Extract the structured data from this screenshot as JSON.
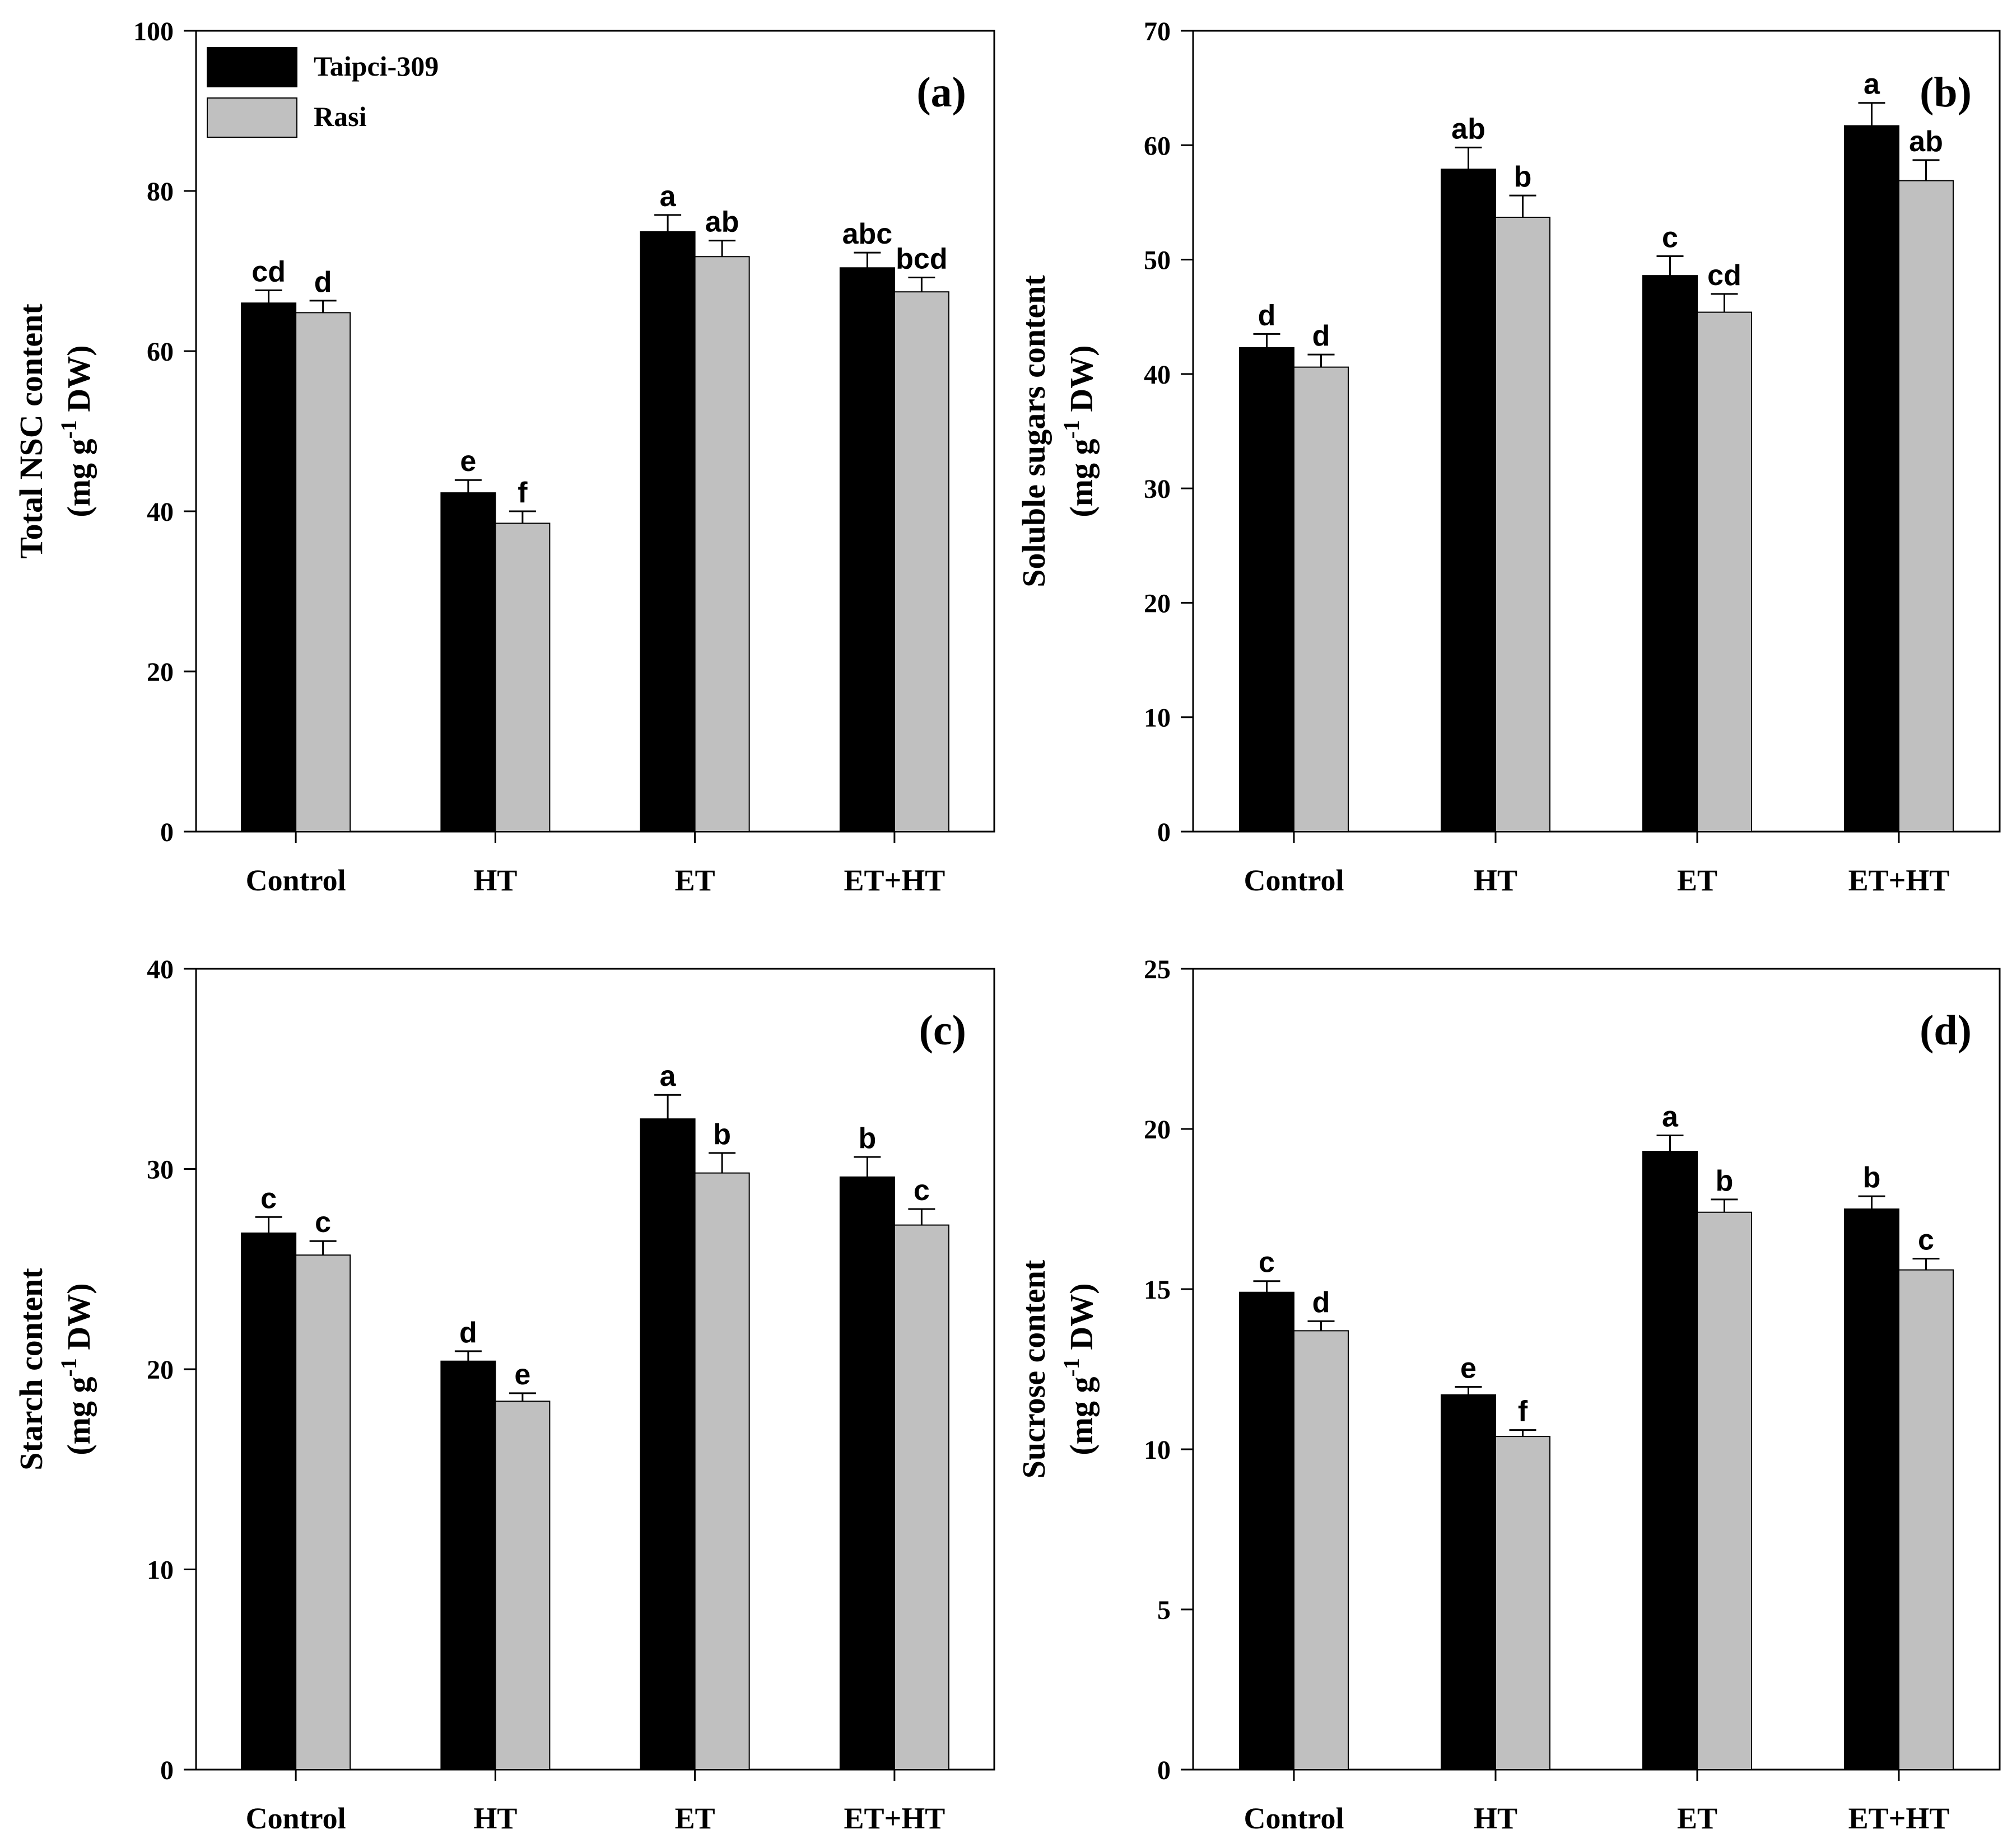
{
  "legend": {
    "series_1": "Taipci-309",
    "series_2": "Rasi"
  },
  "colors": {
    "series_1": "#000000",
    "series_2": "#c0c0c0",
    "axis": "#000000"
  },
  "chart_data": [
    {
      "type": "bar",
      "panel_label": "(a)",
      "ylabel": "Total NSC content",
      "ylabel_unit": "(mg g-1 DW)",
      "ylabel_unit_parts": [
        "(mg g",
        "-1",
        " DW)"
      ],
      "ylim": [
        0,
        100
      ],
      "yticks": [
        "0",
        "20",
        "40",
        "60",
        "80",
        "100"
      ],
      "categories": [
        "Control",
        "HT",
        "ET",
        "ET+HT"
      ],
      "series": [
        {
          "name": "Taipci-309",
          "values": [
            66,
            42.3,
            74.9,
            70.4
          ],
          "errors": [
            1.6,
            1.6,
            2.1,
            1.9
          ],
          "labels": [
            "cd",
            "e",
            "a",
            "abc"
          ]
        },
        {
          "name": "Rasi",
          "values": [
            64.8,
            38.5,
            71.8,
            67.4
          ],
          "errors": [
            1.5,
            1.5,
            2.0,
            1.8
          ],
          "labels": [
            "d",
            "f",
            "ab",
            "bcd"
          ]
        }
      ]
    },
    {
      "type": "bar",
      "panel_label": "(b)",
      "ylabel": "Soluble sugars content",
      "ylabel_unit": "(mg g-1 DW)",
      "ylabel_unit_parts": [
        "(mg g",
        "-1",
        " DW)"
      ],
      "ylim": [
        0,
        70
      ],
      "yticks": [
        "0",
        "10",
        "20",
        "30",
        "40",
        "50",
        "60",
        "70"
      ],
      "categories": [
        "Control",
        "HT",
        "ET",
        "ET+HT"
      ],
      "series": [
        {
          "name": "Taipci-309",
          "values": [
            42.3,
            57.9,
            48.6,
            61.7
          ],
          "errors": [
            1.2,
            1.9,
            1.7,
            2.0
          ],
          "labels": [
            "d",
            "ab",
            "c",
            "a"
          ]
        },
        {
          "name": "Rasi",
          "values": [
            40.6,
            53.7,
            45.4,
            56.9
          ],
          "errors": [
            1.1,
            1.9,
            1.6,
            1.8
          ],
          "labels": [
            "d",
            "b",
            "cd",
            "ab"
          ]
        }
      ]
    },
    {
      "type": "bar",
      "panel_label": "(c)",
      "ylabel": "Starch content",
      "ylabel_unit": "(mg g-1 DW)",
      "ylabel_unit_parts": [
        "(mg g",
        "-1",
        " DW)"
      ],
      "ylim": [
        0,
        40
      ],
      "yticks": [
        "0",
        "10",
        "20",
        "30",
        "40"
      ],
      "categories": [
        "Control",
        "HT",
        "ET",
        "ET+HT"
      ],
      "series": [
        {
          "name": "Taipci-309",
          "values": [
            26.8,
            20.4,
            32.5,
            29.6
          ],
          "errors": [
            0.8,
            0.5,
            1.2,
            1.0
          ],
          "labels": [
            "c",
            "d",
            "a",
            "b"
          ]
        },
        {
          "name": "Rasi",
          "values": [
            25.7,
            18.4,
            29.8,
            27.2
          ],
          "errors": [
            0.7,
            0.4,
            1.0,
            0.8
          ],
          "labels": [
            "c",
            "e",
            "b",
            "c"
          ]
        }
      ]
    },
    {
      "type": "bar",
      "panel_label": "(d)",
      "ylabel": "Sucrose content",
      "ylabel_unit": "(mg g-1 DW)",
      "ylabel_unit_parts": [
        "(mg g",
        "-1",
        " DW)"
      ],
      "ylim": [
        0,
        25
      ],
      "yticks": [
        "0",
        "5",
        "10",
        "15",
        "20",
        "25"
      ],
      "categories": [
        "Control",
        "HT",
        "ET",
        "ET+HT"
      ],
      "series": [
        {
          "name": "Taipci-309",
          "values": [
            14.9,
            11.7,
            19.3,
            17.5
          ],
          "errors": [
            0.35,
            0.25,
            0.5,
            0.4
          ],
          "labels": [
            "c",
            "e",
            "a",
            "b"
          ]
        },
        {
          "name": "Rasi",
          "values": [
            13.7,
            10.4,
            17.4,
            15.6
          ],
          "errors": [
            0.3,
            0.2,
            0.4,
            0.35
          ],
          "labels": [
            "d",
            "f",
            "b",
            "c"
          ]
        }
      ]
    }
  ]
}
